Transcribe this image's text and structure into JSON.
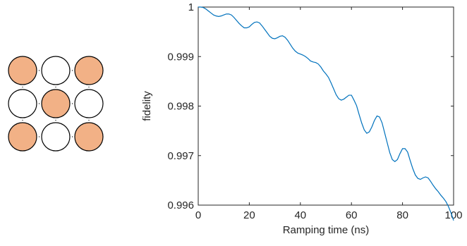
{
  "lattice": {
    "rows": 3,
    "cols": 3,
    "filled": [
      [
        true,
        false,
        true
      ],
      [
        false,
        true,
        false
      ],
      [
        true,
        false,
        true
      ]
    ],
    "filled_color": "#f2b186",
    "empty_color": "#ffffff",
    "edge_color": "#000000"
  },
  "chart_data": {
    "type": "line",
    "title": "",
    "xlabel": "Ramping time (ns)",
    "ylabel": "fidelity",
    "xlim": [
      0,
      100
    ],
    "ylim": [
      0.996,
      1
    ],
    "xticks": [
      0,
      20,
      40,
      60,
      80,
      100
    ],
    "xtick_labels": [
      "0",
      "20",
      "40",
      "60",
      "80",
      "100"
    ],
    "yticks": [
      0.996,
      0.997,
      0.998,
      0.999,
      1
    ],
    "ytick_labels": [
      "0.996",
      "0.997",
      "0.998",
      "0.999",
      "1"
    ],
    "grid": false,
    "line_color": "#0072bd",
    "series": [
      {
        "x": [
          0,
          1,
          2,
          3,
          4,
          5,
          6,
          7,
          8,
          9,
          10,
          11,
          12,
          13,
          14,
          15,
          16,
          17,
          18,
          19,
          20,
          21,
          22,
          23,
          24,
          25,
          26,
          27,
          28,
          29,
          30,
          31,
          32,
          33,
          34,
          35,
          36,
          37,
          38,
          39,
          40,
          41,
          42,
          43,
          44,
          45,
          46,
          47,
          48,
          49,
          50,
          51,
          52,
          53,
          54,
          55,
          56,
          57,
          58,
          59,
          60,
          61,
          62,
          63,
          64,
          65,
          66,
          67,
          68,
          69,
          70,
          71,
          72,
          73,
          74,
          75,
          76,
          77,
          78,
          79,
          80,
          81,
          82,
          83,
          84,
          85,
          86,
          87,
          88,
          89,
          90,
          91,
          92,
          93,
          94,
          95,
          96,
          97,
          98,
          99,
          100
        ],
        "values": [
          1.0,
          1.0,
          0.99999,
          0.99996,
          0.99992,
          0.99988,
          0.99984,
          0.99982,
          0.99981,
          0.99982,
          0.99984,
          0.99986,
          0.99986,
          0.99984,
          0.99979,
          0.99973,
          0.99967,
          0.99962,
          0.99958,
          0.99958,
          0.9996,
          0.99965,
          0.99969,
          0.9997,
          0.99968,
          0.99962,
          0.99955,
          0.99948,
          0.99941,
          0.99937,
          0.99936,
          0.99938,
          0.99941,
          0.99942,
          0.99939,
          0.99933,
          0.99925,
          0.99917,
          0.99911,
          0.99907,
          0.99905,
          0.99903,
          0.999,
          0.99896,
          0.99891,
          0.99889,
          0.99888,
          0.99885,
          0.99879,
          0.99871,
          0.99865,
          0.99858,
          0.99847,
          0.99835,
          0.99823,
          0.99815,
          0.99812,
          0.99814,
          0.99818,
          0.99822,
          0.99822,
          0.99812,
          0.99801,
          0.99783,
          0.99766,
          0.99752,
          0.99745,
          0.99748,
          0.99758,
          0.99771,
          0.9978,
          0.99778,
          0.99766,
          0.99746,
          0.99726,
          0.99706,
          0.99692,
          0.99688,
          0.99692,
          0.99704,
          0.99714,
          0.99714,
          0.99707,
          0.9969,
          0.99674,
          0.99661,
          0.99654,
          0.99652,
          0.99655,
          0.99657,
          0.99655,
          0.99648,
          0.9964,
          0.99633,
          0.99627,
          0.9962,
          0.99614,
          0.99607,
          0.99597,
          0.99584,
          0.99569
        ]
      }
    ]
  }
}
